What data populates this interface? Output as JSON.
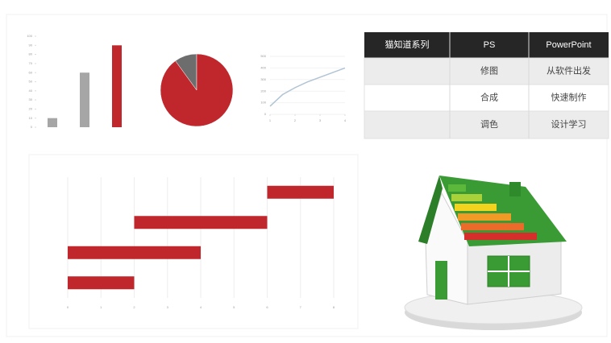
{
  "chart_data": [
    {
      "type": "bar",
      "categories": [
        null,
        null,
        null
      ],
      "values": [
        10,
        60,
        90
      ],
      "colors": [
        "#a6a6a6",
        "#a6a6a6",
        "#c0272d"
      ],
      "ylim": [
        0,
        100
      ],
      "yticks": [
        0,
        10,
        20,
        30,
        40,
        50,
        60,
        70,
        80,
        90,
        100
      ]
    },
    {
      "type": "pie",
      "values": [
        10,
        90
      ],
      "colors": [
        "#6d6d6d",
        "#c0272d"
      ]
    },
    {
      "type": "line",
      "x": [
        1,
        1.5,
        2,
        2.5,
        3,
        3.5,
        4
      ],
      "values": [
        70,
        170,
        230,
        280,
        320,
        360,
        400
      ],
      "color": "#b0c4d4",
      "xlim": [
        1,
        4
      ],
      "xticks": [
        1,
        2,
        3,
        4
      ],
      "ylim": [
        0,
        500
      ],
      "yticks": [
        0,
        100,
        200,
        300,
        400,
        500
      ],
      "grid": true
    },
    {
      "type": "bar",
      "orientation": "horizontal",
      "stacked": true,
      "categories": [
        null,
        null,
        null,
        null
      ],
      "series": [
        {
          "color": "none",
          "values": [
            0,
            0,
            2,
            6
          ]
        },
        {
          "color": "#c0272d",
          "values": [
            2,
            4,
            4,
            2
          ]
        }
      ],
      "xlim": [
        0,
        8
      ],
      "xticks": [
        0,
        1,
        2,
        3,
        4,
        5,
        6,
        7,
        8
      ],
      "grid": true
    }
  ],
  "table": {
    "header": [
      "猫知道系列",
      "PS",
      "PowerPoint"
    ],
    "rows": [
      [
        "",
        "修图",
        "从软件出发"
      ],
      [
        "",
        "合成",
        "快速制作"
      ],
      [
        "",
        "调色",
        "设计学习"
      ]
    ]
  }
}
